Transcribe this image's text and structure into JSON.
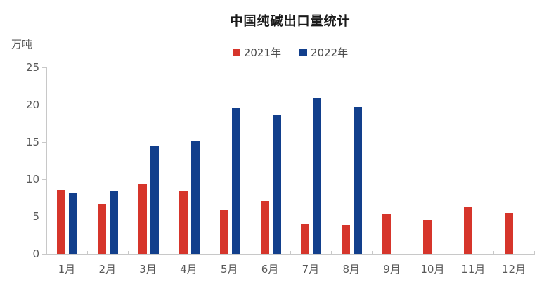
{
  "title": "中国纯碱出口量统计",
  "unit_label": "万吨",
  "legend": [
    {
      "label": "2021年",
      "color": "#d6352b"
    },
    {
      "label": "2022年",
      "color": "#123f8c"
    }
  ],
  "chart_data": {
    "type": "bar",
    "title": "中国纯碱出口量统计",
    "ylabel": "万吨",
    "xlabel": "",
    "categories": [
      "1月",
      "2月",
      "3月",
      "4月",
      "5月",
      "6月",
      "7月",
      "8月",
      "9月",
      "10月",
      "11月",
      "12月"
    ],
    "series": [
      {
        "name": "2021年",
        "color": "#d6352b",
        "values": [
          8.6,
          6.7,
          9.4,
          8.4,
          5.9,
          7.1,
          4.1,
          3.9,
          5.3,
          4.5,
          6.2,
          5.5
        ]
      },
      {
        "name": "2022年",
        "color": "#123f8c",
        "values": [
          8.2,
          8.5,
          14.5,
          15.2,
          19.5,
          18.6,
          20.9,
          19.7,
          null,
          null,
          null,
          null
        ]
      }
    ],
    "ylim": [
      0,
      25
    ],
    "yticks": [
      0,
      5,
      10,
      15,
      20,
      25
    ],
    "grid": false,
    "legend_position": "top-center"
  },
  "axis": {
    "line_color": "#c8c8c8",
    "tick_label_color": "#595959"
  }
}
